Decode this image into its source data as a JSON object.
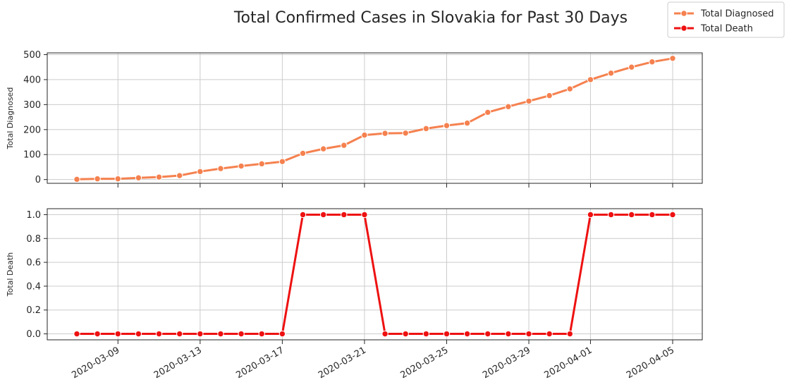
{
  "chart_data": {
    "type": "line",
    "title": "Total Confirmed Cases in Slovakia for Past 30 Days",
    "x": [
      "2020-03-07",
      "2020-03-08",
      "2020-03-09",
      "2020-03-10",
      "2020-03-11",
      "2020-03-12",
      "2020-03-13",
      "2020-03-14",
      "2020-03-15",
      "2020-03-16",
      "2020-03-17",
      "2020-03-18",
      "2020-03-19",
      "2020-03-20",
      "2020-03-21",
      "2020-03-22",
      "2020-03-23",
      "2020-03-24",
      "2020-03-25",
      "2020-03-26",
      "2020-03-27",
      "2020-03-28",
      "2020-03-29",
      "2020-03-30",
      "2020-03-31",
      "2020-04-01",
      "2020-04-02",
      "2020-04-03",
      "2020-04-04",
      "2020-04-05"
    ],
    "xticks": [
      "2020-03-09",
      "2020-03-13",
      "2020-03-17",
      "2020-03-21",
      "2020-03-25",
      "2020-03-29",
      "2020-04-01",
      "2020-04-05"
    ],
    "legend": {
      "placement": "top-right"
    },
    "grid": true,
    "panels": [
      {
        "ylabel": "Total Diagnosed",
        "ylim": [
          -15,
          507
        ],
        "yticks": [
          0,
          100,
          200,
          300,
          400,
          500
        ],
        "ytick_labels": [
          "0",
          "100",
          "200",
          "300",
          "400",
          "500"
        ],
        "series": [
          {
            "name": "Total Diagnosed",
            "color": "#f5814f",
            "values": [
              1,
              3,
              3,
              7,
              10,
              16,
              32,
              44,
              54,
              63,
              72,
              105,
              123,
              137,
              178,
              185,
              186,
              204,
              216,
              226,
              269,
              292,
              314,
              336,
              363,
              400,
              426,
              450,
              471,
              485
            ]
          }
        ]
      },
      {
        "ylabel": "Total Death",
        "ylim": [
          -0.05,
          1.05
        ],
        "yticks": [
          0,
          0.2,
          0.4,
          0.6,
          0.8,
          1.0
        ],
        "ytick_labels": [
          "0.0",
          "0.2",
          "0.4",
          "0.6",
          "0.8",
          "1.0"
        ],
        "series": [
          {
            "name": "Total Death",
            "color": "#ee1111",
            "values": [
              0,
              0,
              0,
              0,
              0,
              0,
              0,
              0,
              0,
              0,
              0,
              1,
              1,
              1,
              1,
              0,
              0,
              0,
              0,
              0,
              0,
              0,
              0,
              0,
              0,
              1,
              1,
              1,
              1,
              1
            ]
          }
        ]
      }
    ]
  }
}
